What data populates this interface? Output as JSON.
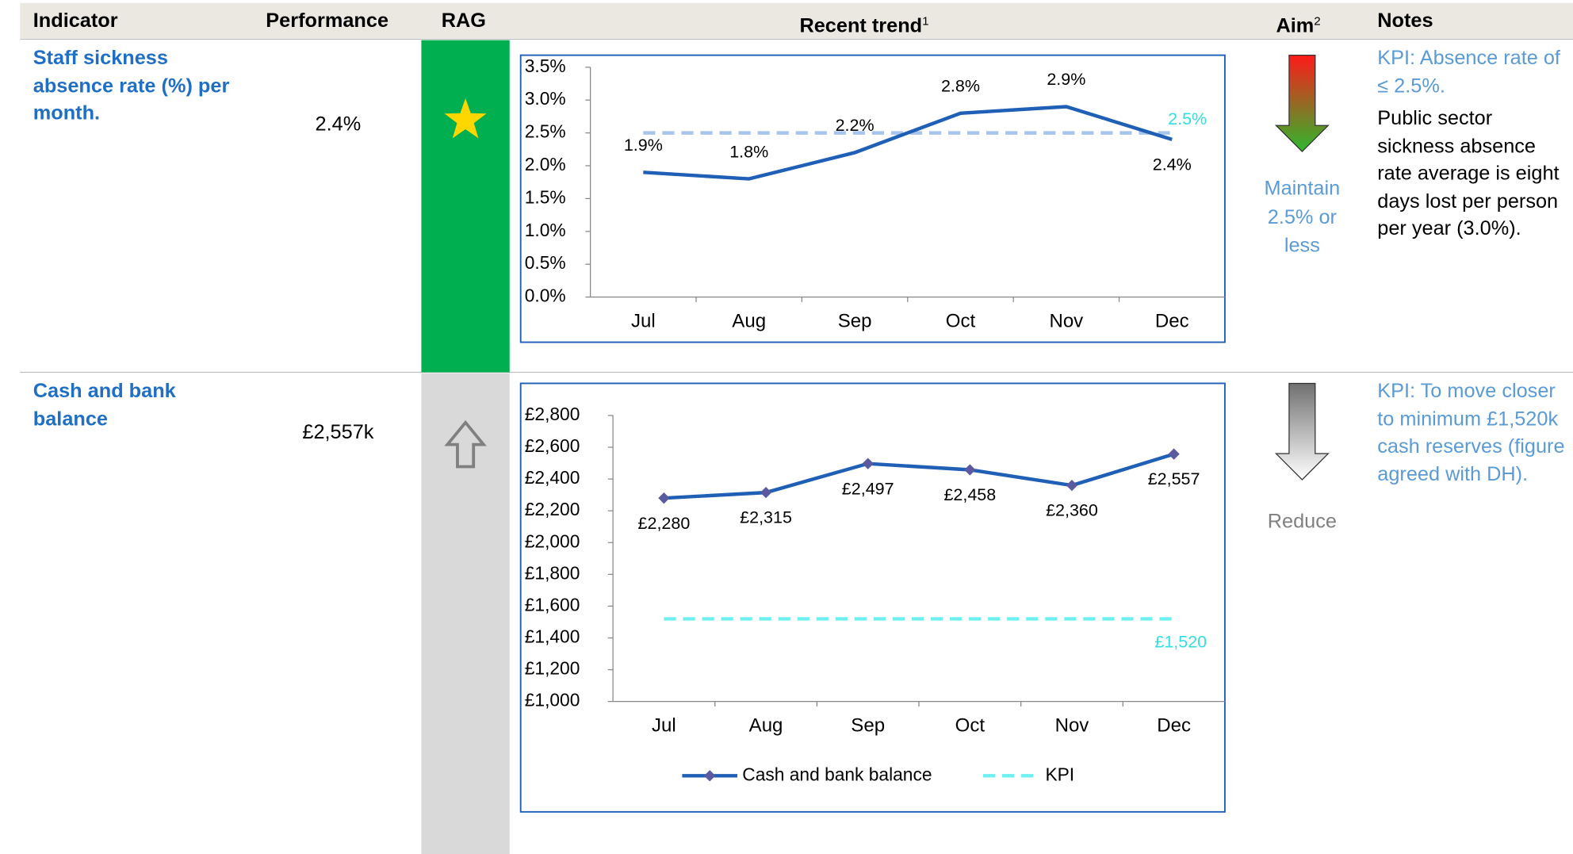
{
  "header": [
    "Indicator",
    "Performance",
    "RAG",
    {
      "text": "Recent trend",
      "note": "1"
    },
    {
      "text": "Aim",
      "note": "2"
    },
    "Notes"
  ],
  "rows": [
    {
      "indicator": "Staff sickness absence rate (%) per month.",
      "performance": "2.4%",
      "rag_color": "#00b050",
      "aim": {
        "text": "Maintain 2.5% or less",
        "color": "#5b9bd5"
      },
      "notes": [
        {
          "text": "KPI: Absence rate of ≤ 2.5%.",
          "color": "#5b9bd5"
        },
        {
          "text": "Public sector sickness absence rate average is eight days lost per person per year (3.0%).",
          "color": "#000000"
        }
      ],
      "chart": {
        "type": "line",
        "categories": [
          "Jul",
          "Aug",
          "Sep",
          "Oct",
          "Nov",
          "Dec"
        ],
        "series": [
          {
            "color": "#1f5fb5",
            "values": [
              1.9,
              1.8,
              2.2,
              2.8,
              2.9,
              2.4
            ],
            "value_labels": [
              "1.9%",
              "1.8%",
              "2.2%",
              "2.8%",
              "2.9%",
              "2.4%"
            ]
          }
        ],
        "kpi": {
          "value": 2.5,
          "label": "2.5%",
          "color": "#a9c4ea",
          "label_color": "#33dede"
        },
        "ylim": [
          0,
          3.5
        ],
        "yticks": [
          {
            "value": 0,
            "label": "0.0%"
          },
          {
            "value": 0.5,
            "label": "0.5%"
          },
          {
            "value": 1,
            "label": "1.0%"
          },
          {
            "value": 1.5,
            "label": "1.5%"
          },
          {
            "value": 2,
            "label": "2.0%"
          },
          {
            "value": 2.5,
            "label": "2.5%"
          },
          {
            "value": 3,
            "label": "3.0%"
          },
          {
            "value": 3.5,
            "label": "3.5%"
          }
        ]
      }
    },
    {
      "indicator": "Cash and bank balance",
      "performance": "£2,557k",
      "rag_color": "#d9d9d9",
      "aim": {
        "text": "Reduce",
        "color": "#808080"
      },
      "notes": [
        {
          "text": "KPI: To move closer to minimum £1,520k cash reserves (figure agreed with DH).",
          "color": "#5b9bd5"
        }
      ],
      "chart": {
        "type": "line",
        "categories": [
          "Jul",
          "Aug",
          "Sep",
          "Oct",
          "Nov",
          "Dec"
        ],
        "series": [
          {
            "name": "Cash and bank balance",
            "color": "#1f5fb5",
            "marker_color": "#5a5aa0",
            "values": [
              2280,
              2315,
              2497,
              2458,
              2360,
              2557
            ],
            "value_labels": [
              "£2,280",
              "£2,315",
              "£2,497",
              "£2,458",
              "£2,360",
              "£2,557"
            ]
          }
        ],
        "kpi": {
          "name": "KPI",
          "value": 1520,
          "label": "£1,520",
          "color": "#6ff0f0",
          "label_color": "#33dede"
        },
        "ylim": [
          1000,
          2800
        ],
        "yticks": [
          {
            "value": 1000,
            "label": "£1,000"
          },
          {
            "value": 1200,
            "label": "£1,200"
          },
          {
            "value": 1400,
            "label": "£1,400"
          },
          {
            "value": 1600,
            "label": "£1,600"
          },
          {
            "value": 1800,
            "label": "£1,800"
          },
          {
            "value": 2000,
            "label": "£2,000"
          },
          {
            "value": 2200,
            "label": "£2,200"
          },
          {
            "value": 2400,
            "label": "£2,400"
          },
          {
            "value": 2600,
            "label": "£2,600"
          },
          {
            "value": 2800,
            "label": "£2,800"
          }
        ],
        "legend": true
      }
    }
  ]
}
